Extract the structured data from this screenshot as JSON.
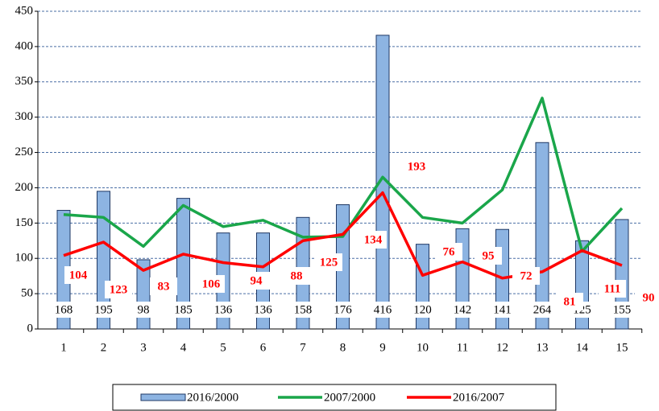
{
  "chart_data": {
    "type": "bar-line",
    "categories": [
      "1",
      "2",
      "3",
      "4",
      "5",
      "6",
      "7",
      "8",
      "9",
      "10",
      "11",
      "12",
      "13",
      "14",
      "15"
    ],
    "series": [
      {
        "name": "2016/2000",
        "type": "bar",
        "color": "#8db4e2",
        "values": [
          168,
          195,
          98,
          185,
          136,
          136,
          158,
          176,
          416,
          120,
          142,
          141,
          264,
          125,
          155
        ]
      },
      {
        "name": "2007/2000",
        "type": "line",
        "color": "#1aa64a",
        "values": [
          162,
          158,
          117,
          175,
          145,
          154,
          130,
          131,
          215,
          158,
          150,
          197,
          327,
          110,
          171
        ]
      },
      {
        "name": "2016/2007",
        "type": "line",
        "color": "#ff0000",
        "values": [
          104,
          123,
          83,
          106,
          94,
          88,
          125,
          134,
          193,
          76,
          95,
          72,
          81,
          111,
          90
        ]
      }
    ],
    "ylim": [
      0,
      450
    ],
    "yticks": [
      0,
      50,
      100,
      150,
      200,
      250,
      300,
      350,
      400,
      450
    ],
    "grid": true
  }
}
